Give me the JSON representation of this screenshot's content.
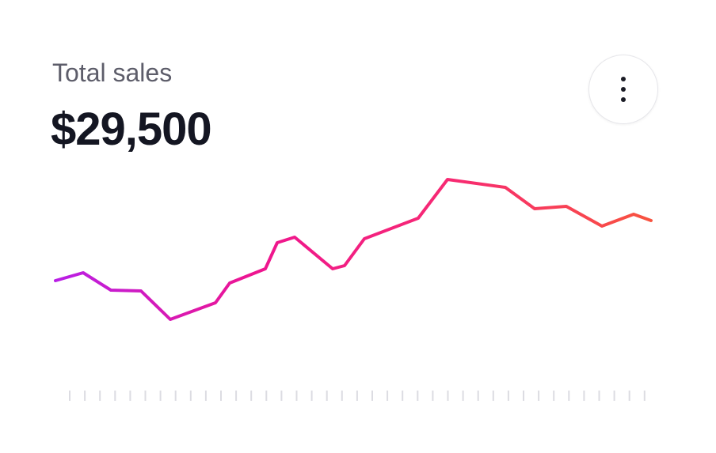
{
  "header": {
    "title": "Total sales",
    "value": "$29,500"
  },
  "chart_data": {
    "type": "line",
    "x": [
      0,
      35,
      70,
      108,
      145,
      202,
      220,
      265,
      280,
      302,
      350,
      365,
      390,
      458,
      495,
      568,
      605,
      645,
      690,
      730,
      752
    ],
    "values": [
      75,
      85,
      63,
      62,
      26,
      47,
      72,
      90,
      123,
      130,
      90,
      94,
      128,
      154,
      203,
      193,
      166,
      169,
      144,
      159,
      151
    ],
    "xlim": [
      0,
      752
    ],
    "ylim": [
      0,
      230
    ],
    "colors": [
      "#b91fe6",
      "#ee1590",
      "#f72a72",
      "#f8533f"
    ]
  }
}
